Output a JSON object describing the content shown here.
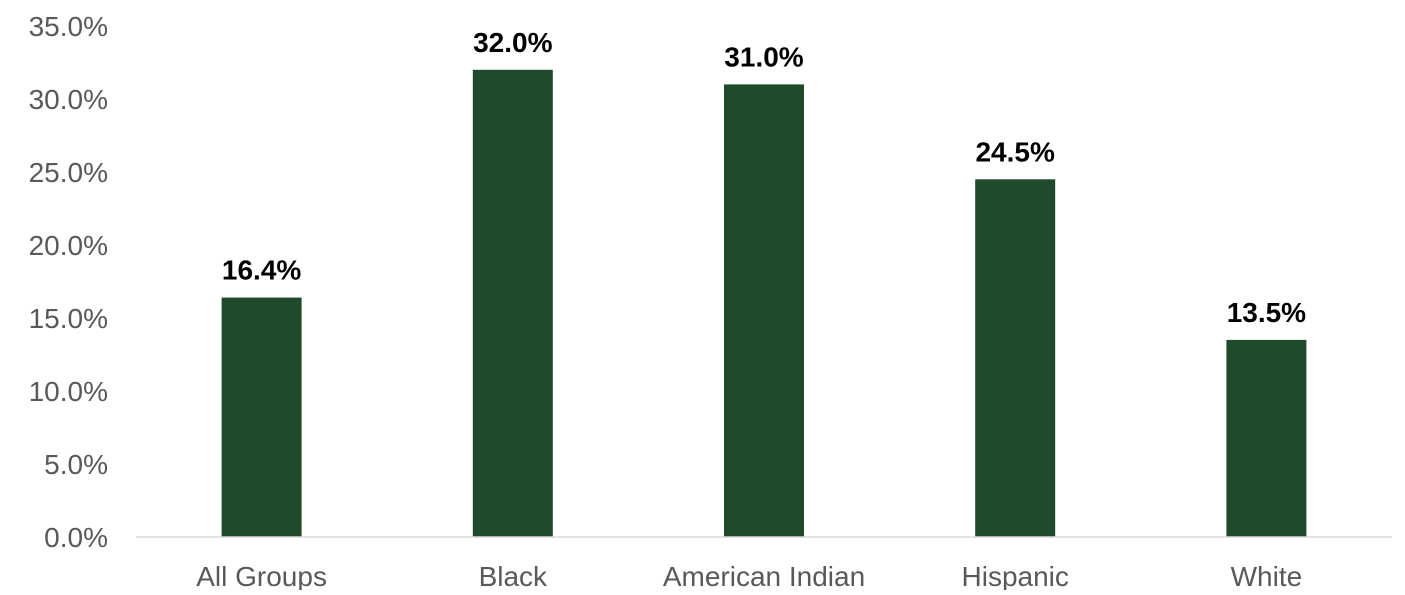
{
  "chart_data": {
    "type": "bar",
    "title": "",
    "xlabel": "",
    "ylabel": "",
    "categories": [
      "All Groups",
      "Black",
      "American Indian",
      "Hispanic",
      "White"
    ],
    "values": [
      16.4,
      32.0,
      31.0,
      24.5,
      13.5
    ],
    "data_labels": [
      "16.4%",
      "32.0%",
      "31.0%",
      "24.5%",
      "13.5%"
    ],
    "ylim": [
      0,
      35
    ],
    "yticks": [
      0,
      5,
      10,
      15,
      20,
      25,
      30,
      35
    ],
    "ytick_labels": [
      "0.0%",
      "5.0%",
      "10.0%",
      "15.0%",
      "20.0%",
      "25.0%",
      "30.0%",
      "35.0%"
    ],
    "grid": false,
    "legend": "none",
    "bar_color": "#1f4a2c"
  }
}
